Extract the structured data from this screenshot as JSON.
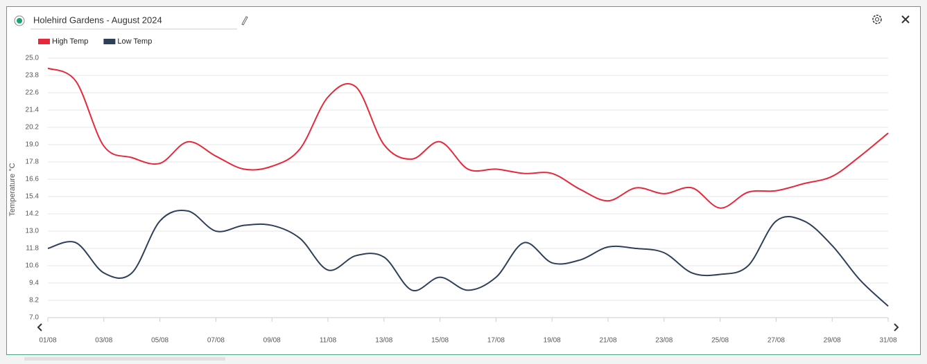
{
  "header": {
    "title": "Holehird Gardens - August 2024"
  },
  "chart_data": {
    "type": "line",
    "y_label": "Temperature °C",
    "x": [
      "01/08",
      null,
      "03/08",
      null,
      "05/08",
      null,
      "07/08",
      null,
      "09/08",
      null,
      "11/08",
      null,
      "13/08",
      null,
      "15/08",
      null,
      "17/08",
      null,
      "19/08",
      null,
      "21/08",
      null,
      "23/08",
      null,
      "25/08",
      null,
      "27/08",
      null,
      "29/08",
      null,
      "31/08"
    ],
    "series": [
      {
        "name": "High Temp",
        "color": "#e8283a",
        "values": [
          24.3,
          23.4,
          18.9,
          18.1,
          17.7,
          19.2,
          18.2,
          17.3,
          17.5,
          18.7,
          22.3,
          23.0,
          19.0,
          18.0,
          19.2,
          17.3,
          17.3,
          17.0,
          17.0,
          15.9,
          15.1,
          16.0,
          15.6,
          16.0,
          14.6,
          15.7,
          15.8,
          16.3,
          16.8,
          18.2,
          19.8
        ]
      },
      {
        "name": "Low Temp",
        "color": "#2e3f58",
        "values": [
          11.8,
          12.2,
          10.1,
          10.1,
          13.7,
          14.4,
          13.0,
          13.4,
          13.4,
          12.5,
          10.3,
          11.3,
          11.2,
          8.9,
          9.8,
          8.9,
          9.8,
          12.2,
          10.8,
          11.0,
          11.9,
          11.8,
          11.5,
          10.1,
          10.0,
          10.6,
          13.7,
          13.7,
          12.0,
          9.6,
          7.8
        ]
      }
    ],
    "ylim": [
      7.0,
      25.0
    ],
    "yticks": [
      {
        "value": 7,
        "label": "7.0"
      },
      {
        "value": 8.2,
        "label": "8.2"
      },
      {
        "value": 9.4,
        "label": "9.4"
      },
      {
        "value": 10.6,
        "label": "10.6"
      },
      {
        "value": 11.8,
        "label": "11.8"
      },
      {
        "value": 13,
        "label": "13.0"
      },
      {
        "value": 14.2,
        "label": "14.2"
      },
      {
        "value": 15.4,
        "label": "15.4"
      },
      {
        "value": 16.6,
        "label": "16.6"
      },
      {
        "value": 17.8,
        "label": "17.8"
      },
      {
        "value": 19,
        "label": "19.0"
      },
      {
        "value": 20.2,
        "label": "20.2"
      },
      {
        "value": 21.4,
        "label": "21.4"
      },
      {
        "value": 22.6,
        "label": "22.6"
      },
      {
        "value": 23.8,
        "label": "23.8"
      },
      {
        "value": 25,
        "label": "25.0"
      }
    ],
    "grid": true
  }
}
